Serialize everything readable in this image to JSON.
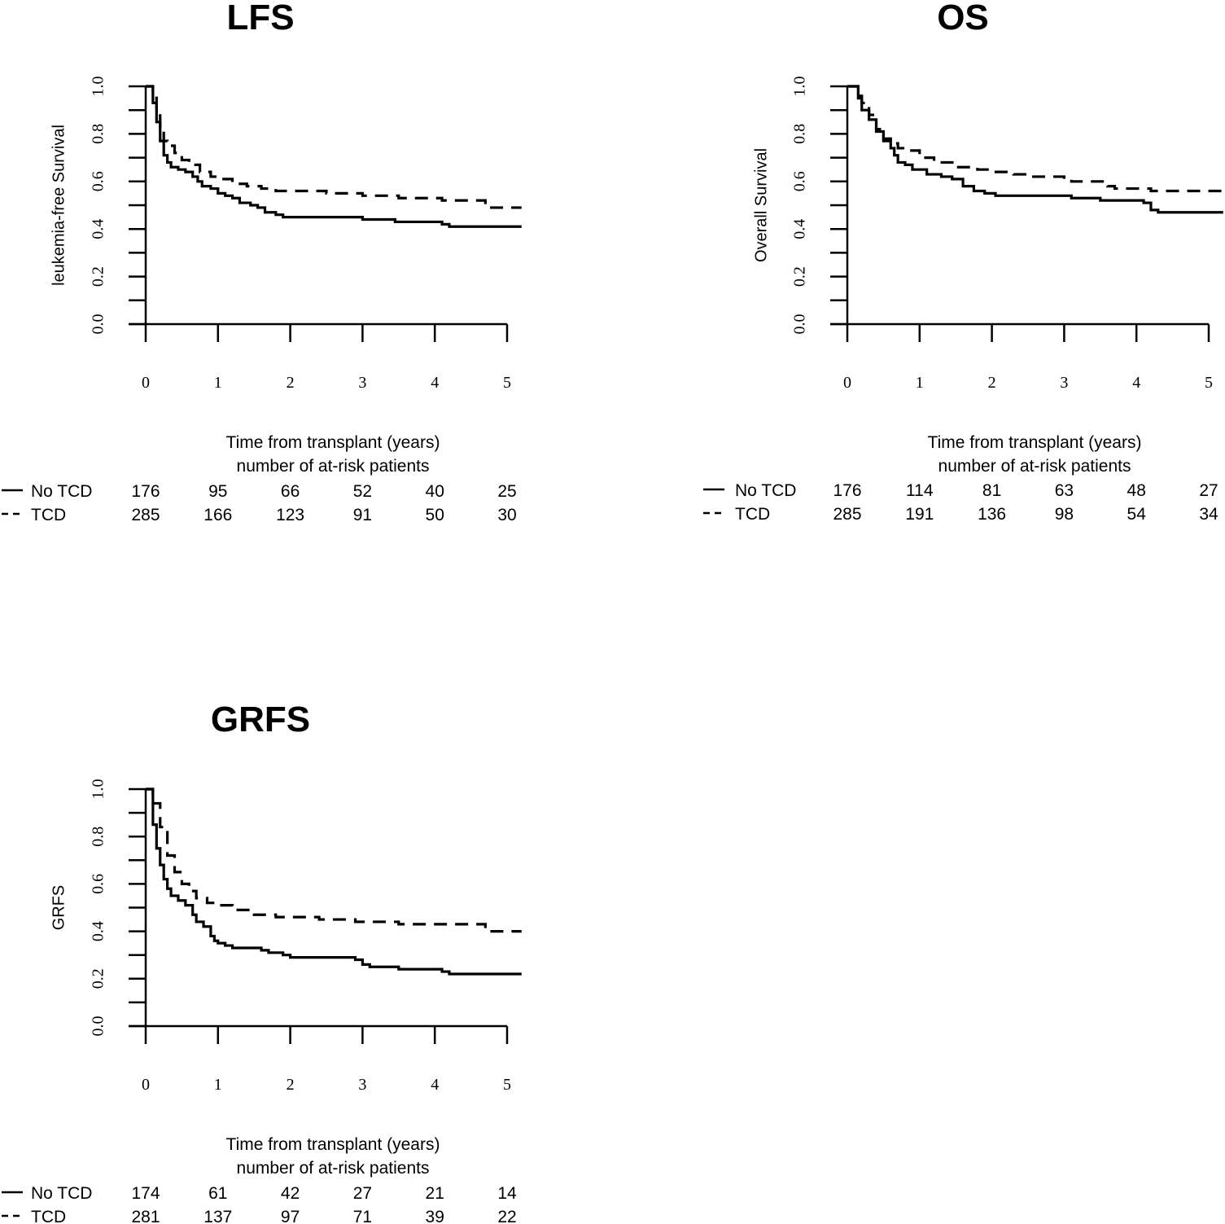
{
  "chart_data": [
    {
      "type": "line",
      "id": "lfs",
      "title": "LFS",
      "xlabel": "Time from transplant (years)",
      "ylabel": "leukemia-free Survival",
      "risk_table_title": "number of at-risk patients",
      "xlim": [
        0,
        5
      ],
      "ylim": [
        0,
        1
      ],
      "x_ticks": [
        0,
        1,
        2,
        3,
        4,
        5
      ],
      "x_tick_labels": [
        "0",
        "1",
        "2",
        "3",
        "4",
        "5"
      ],
      "y_ticks": [
        0.0,
        0.2,
        0.4,
        0.6,
        0.8,
        1.0
      ],
      "y_tick_labels": [
        "0.0",
        "0.2",
        "0.4",
        "0.6",
        "0.8",
        "1.0"
      ],
      "y_minor_step": 0.1,
      "grid": false,
      "series": [
        {
          "name": "No TCD",
          "style": "solid",
          "x": [
            0,
            0.05,
            0.1,
            0.15,
            0.2,
            0.25,
            0.3,
            0.35,
            0.45,
            0.55,
            0.65,
            0.72,
            0.78,
            0.9,
            1.0,
            1.1,
            1.2,
            1.3,
            1.45,
            1.55,
            1.65,
            1.8,
            1.9,
            2.9,
            3.0,
            3.3,
            3.45,
            4.0,
            4.1,
            4.2,
            5.2
          ],
          "y": [
            1.0,
            1.0,
            0.93,
            0.85,
            0.77,
            0.71,
            0.68,
            0.66,
            0.65,
            0.64,
            0.62,
            0.6,
            0.58,
            0.57,
            0.55,
            0.54,
            0.53,
            0.51,
            0.5,
            0.49,
            0.47,
            0.46,
            0.45,
            0.45,
            0.44,
            0.44,
            0.43,
            0.43,
            0.42,
            0.41,
            0.41
          ]
        },
        {
          "name": "TCD",
          "style": "dashed",
          "x": [
            0,
            0.05,
            0.1,
            0.15,
            0.2,
            0.25,
            0.3,
            0.4,
            0.5,
            0.6,
            0.75,
            0.9,
            1.0,
            1.2,
            1.4,
            1.6,
            1.8,
            2.0,
            2.4,
            2.5,
            2.8,
            3.0,
            3.4,
            3.5,
            4.0,
            4.1,
            4.6,
            4.7,
            5.2
          ],
          "y": [
            1.0,
            1.0,
            0.96,
            0.9,
            0.82,
            0.77,
            0.75,
            0.72,
            0.69,
            0.67,
            0.64,
            0.62,
            0.61,
            0.59,
            0.58,
            0.57,
            0.56,
            0.56,
            0.56,
            0.55,
            0.55,
            0.54,
            0.54,
            0.53,
            0.53,
            0.52,
            0.52,
            0.49,
            0.49
          ]
        }
      ],
      "at_risk": [
        {
          "name": "No TCD",
          "style": "solid",
          "values": [
            176,
            95,
            66,
            52,
            40,
            25
          ]
        },
        {
          "name": "TCD",
          "style": "dashed",
          "values": [
            285,
            166,
            123,
            91,
            50,
            30
          ]
        }
      ]
    },
    {
      "type": "line",
      "id": "os",
      "title": "OS",
      "xlabel": "Time from transplant (years)",
      "ylabel": "Overall Survival",
      "risk_table_title": "number of at-risk patients",
      "xlim": [
        0,
        5
      ],
      "ylim": [
        0,
        1
      ],
      "x_ticks": [
        0,
        1,
        2,
        3,
        4,
        5
      ],
      "x_tick_labels": [
        "0",
        "1",
        "2",
        "3",
        "4",
        "5"
      ],
      "y_ticks": [
        0.0,
        0.2,
        0.4,
        0.6,
        0.8,
        1.0
      ],
      "y_tick_labels": [
        "0.0",
        "0.2",
        "0.4",
        "0.6",
        "0.8",
        "1.0"
      ],
      "y_minor_step": 0.1,
      "grid": false,
      "series": [
        {
          "name": "No TCD",
          "style": "solid",
          "x": [
            0,
            0.08,
            0.15,
            0.2,
            0.3,
            0.4,
            0.5,
            0.6,
            0.65,
            0.7,
            0.8,
            0.9,
            1.0,
            1.1,
            1.3,
            1.45,
            1.6,
            1.75,
            1.9,
            2.05,
            3.0,
            3.1,
            3.4,
            3.5,
            3.9,
            4.1,
            4.2,
            4.3,
            5.2
          ],
          "y": [
            1.0,
            1.0,
            0.95,
            0.9,
            0.86,
            0.81,
            0.77,
            0.74,
            0.71,
            0.68,
            0.67,
            0.65,
            0.65,
            0.63,
            0.62,
            0.61,
            0.58,
            0.56,
            0.55,
            0.54,
            0.54,
            0.53,
            0.53,
            0.52,
            0.52,
            0.51,
            0.48,
            0.47,
            0.47
          ]
        },
        {
          "name": "TCD",
          "style": "dashed",
          "x": [
            0,
            0.1,
            0.15,
            0.2,
            0.3,
            0.4,
            0.5,
            0.6,
            0.7,
            0.8,
            1.0,
            1.2,
            1.5,
            1.8,
            2.0,
            2.3,
            2.5,
            3.0,
            3.1,
            3.6,
            3.7,
            4.0,
            4.2,
            5.2
          ],
          "y": [
            1.0,
            1.0,
            0.96,
            0.93,
            0.88,
            0.82,
            0.78,
            0.76,
            0.74,
            0.73,
            0.7,
            0.68,
            0.66,
            0.65,
            0.64,
            0.63,
            0.62,
            0.61,
            0.6,
            0.58,
            0.57,
            0.57,
            0.56,
            0.56
          ]
        }
      ],
      "at_risk": [
        {
          "name": "No TCD",
          "style": "solid",
          "values": [
            176,
            114,
            81,
            63,
            48,
            27
          ]
        },
        {
          "name": "TCD",
          "style": "dashed",
          "values": [
            285,
            191,
            136,
            98,
            54,
            34
          ]
        }
      ]
    },
    {
      "type": "line",
      "id": "grfs",
      "title": "GRFS",
      "xlabel": "Time from transplant (years)",
      "ylabel": "GRFS",
      "risk_table_title": "number of at-risk patients",
      "xlim": [
        0,
        5
      ],
      "ylim": [
        0,
        1
      ],
      "x_ticks": [
        0,
        1,
        2,
        3,
        4,
        5
      ],
      "x_tick_labels": [
        "0",
        "1",
        "2",
        "3",
        "4",
        "5"
      ],
      "y_ticks": [
        0.0,
        0.2,
        0.4,
        0.6,
        0.8,
        1.0
      ],
      "y_tick_labels": [
        "0.0",
        "0.2",
        "0.4",
        "0.6",
        "0.8",
        "1.0"
      ],
      "y_minor_step": 0.1,
      "grid": false,
      "series": [
        {
          "name": "No TCD",
          "style": "solid",
          "x": [
            0,
            0.05,
            0.1,
            0.15,
            0.2,
            0.25,
            0.3,
            0.35,
            0.45,
            0.55,
            0.65,
            0.7,
            0.8,
            0.9,
            0.95,
            1.0,
            1.1,
            1.2,
            1.5,
            1.6,
            1.7,
            1.9,
            2.0,
            2.8,
            2.9,
            3.0,
            3.1,
            3.5,
            4.0,
            4.1,
            4.2,
            5.2
          ],
          "y": [
            1.0,
            1.0,
            0.85,
            0.75,
            0.68,
            0.62,
            0.58,
            0.55,
            0.53,
            0.51,
            0.47,
            0.44,
            0.42,
            0.38,
            0.36,
            0.35,
            0.34,
            0.33,
            0.33,
            0.32,
            0.31,
            0.3,
            0.29,
            0.29,
            0.28,
            0.26,
            0.25,
            0.24,
            0.24,
            0.23,
            0.22,
            0.22
          ]
        },
        {
          "name": "TCD",
          "style": "dashed",
          "x": [
            0,
            0.05,
            0.1,
            0.2,
            0.3,
            0.4,
            0.5,
            0.6,
            0.7,
            0.85,
            1.0,
            1.2,
            1.5,
            1.8,
            2.0,
            2.4,
            2.5,
            2.9,
            3.0,
            3.5,
            4.0,
            4.5,
            4.7,
            5.2
          ],
          "y": [
            1.0,
            1.0,
            0.94,
            0.84,
            0.72,
            0.65,
            0.6,
            0.57,
            0.54,
            0.52,
            0.51,
            0.49,
            0.47,
            0.46,
            0.46,
            0.45,
            0.45,
            0.44,
            0.44,
            0.43,
            0.43,
            0.43,
            0.4,
            0.4
          ]
        }
      ],
      "at_risk": [
        {
          "name": "No TCD",
          "style": "solid",
          "values": [
            174,
            61,
            42,
            27,
            21,
            14
          ]
        },
        {
          "name": "TCD",
          "style": "dashed",
          "values": [
            281,
            137,
            97,
            71,
            39,
            22
          ]
        }
      ]
    }
  ]
}
